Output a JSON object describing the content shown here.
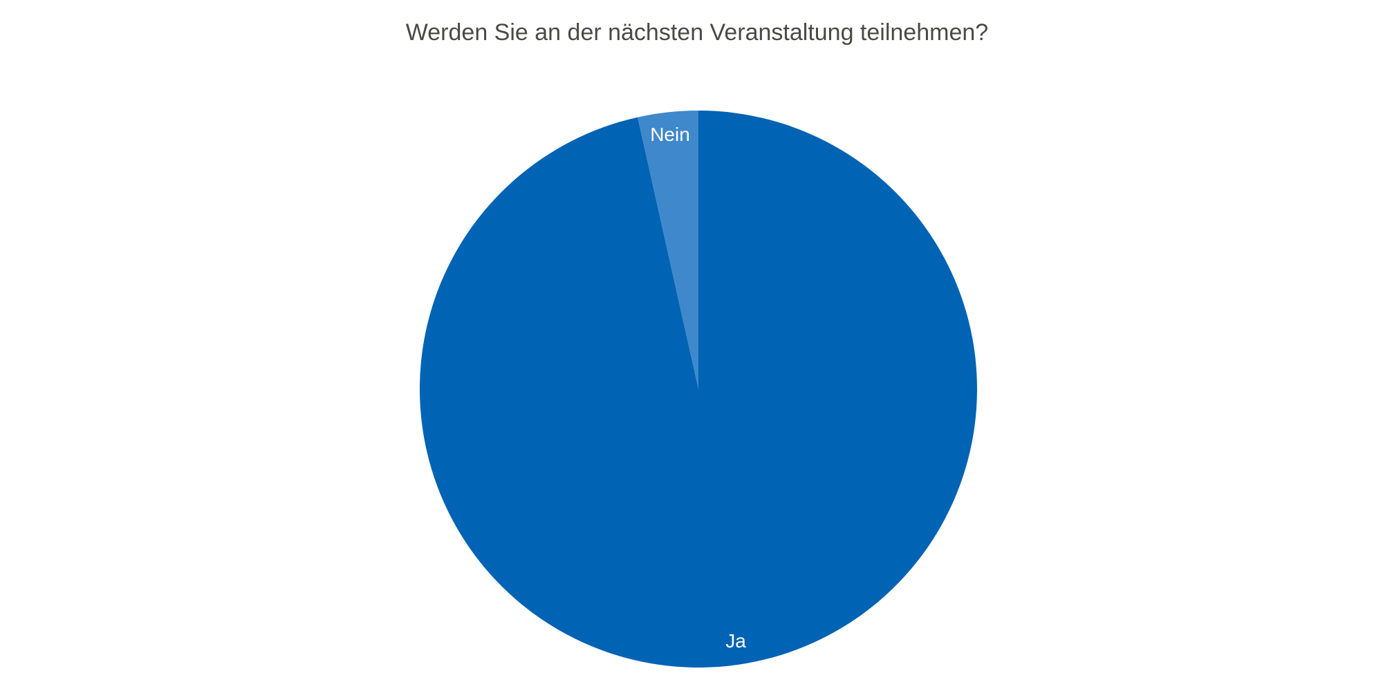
{
  "chart_data": {
    "type": "pie",
    "title": "Werden Sie an der nächsten Veranstaltung teilnehmen?",
    "slices": [
      {
        "label": "Ja",
        "value": 96.5,
        "color": "#0063b4"
      },
      {
        "label": "Nein",
        "value": 3.5,
        "color": "#3f88cb"
      }
    ],
    "start_angle": "top",
    "direction": "clockwise",
    "data_labels": "inside"
  }
}
